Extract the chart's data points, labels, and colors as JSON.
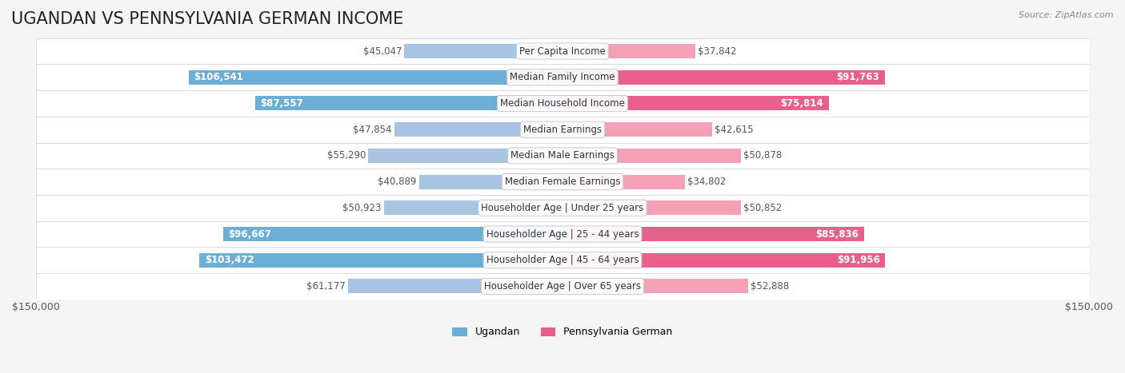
{
  "title": "UGANDAN VS PENNSYLVANIA GERMAN INCOME",
  "source": "Source: ZipAtlas.com",
  "categories": [
    "Per Capita Income",
    "Median Family Income",
    "Median Household Income",
    "Median Earnings",
    "Median Male Earnings",
    "Median Female Earnings",
    "Householder Age | Under 25 years",
    "Householder Age | 25 - 44 years",
    "Householder Age | 45 - 64 years",
    "Householder Age | Over 65 years"
  ],
  "ugandan": [
    45047,
    106541,
    87557,
    47854,
    55290,
    40889,
    50923,
    96667,
    103472,
    61177
  ],
  "penn_german": [
    37842,
    91763,
    75814,
    42615,
    50878,
    34802,
    50852,
    85836,
    91956,
    52888
  ],
  "max_val": 150000,
  "ugandan_color_light": "#a8c4e0",
  "ugandan_color_dark": "#6baed6",
  "penn_color_light": "#f4a0b5",
  "penn_color_dark": "#e8608a",
  "bg_color": "#f5f5f5",
  "row_bg": "#ebebeb",
  "label_bg": "#ffffff",
  "bar_height": 0.55,
  "title_fontsize": 15,
  "label_fontsize": 8.5,
  "value_fontsize": 8.5
}
